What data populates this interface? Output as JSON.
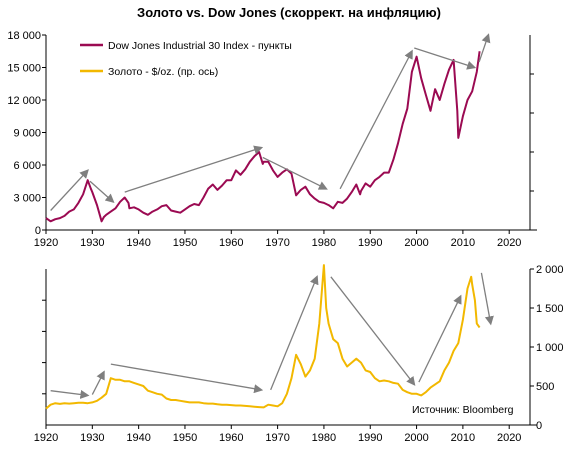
{
  "chart_data": {
    "type": "line",
    "title": "Золото vs. Dow Jones (скоррект. на инфляцию)",
    "source": "Источник: Bloomberg",
    "colors": {
      "dow": "#9b0a52",
      "gold": "#f2b800",
      "arrow": "#7f7f7f"
    },
    "x_ticks": [
      "1920",
      "1930",
      "1940",
      "1950",
      "1960",
      "1970",
      "1980",
      "1990",
      "2000",
      "2010",
      "2020"
    ],
    "panels": [
      {
        "name": "dow-panel",
        "ylim": [
          0,
          18000
        ],
        "y_ticks": [
          "0",
          "3 000",
          "6 000",
          "9 000",
          "12 000",
          "15 000",
          "18 000"
        ],
        "y_tick_values": [
          0,
          3000,
          6000,
          9000,
          12000,
          15000,
          18000
        ],
        "axis_side": "left",
        "series": [
          {
            "name": "Dow Jones Industrial 30 Index - пункты",
            "color": "#9b0a52",
            "points": [
              [
                1920,
                1100
              ],
              [
                1921,
                800
              ],
              [
                1922,
                1000
              ],
              [
                1923,
                1100
              ],
              [
                1924,
                1300
              ],
              [
                1925,
                1700
              ],
              [
                1926,
                1900
              ],
              [
                1927,
                2500
              ],
              [
                1928,
                3300
              ],
              [
                1929,
                4600
              ],
              [
                1929.7,
                3800
              ],
              [
                1930,
                3500
              ],
              [
                1931,
                2300
              ],
              [
                1932,
                800
              ],
              [
                1932.5,
                1200
              ],
              [
                1933,
                1400
              ],
              [
                1934,
                1700
              ],
              [
                1935,
                2000
              ],
              [
                1936,
                2600
              ],
              [
                1937,
                3000
              ],
              [
                1937.8,
                2500
              ],
              [
                1938,
                2000
              ],
              [
                1939,
                2100
              ],
              [
                1940,
                1900
              ],
              [
                1941,
                1600
              ],
              [
                1942,
                1400
              ],
              [
                1943,
                1700
              ],
              [
                1944,
                1900
              ],
              [
                1945,
                2200
              ],
              [
                1946,
                2300
              ],
              [
                1947,
                1800
              ],
              [
                1948,
                1700
              ],
              [
                1949,
                1600
              ],
              [
                1950,
                1900
              ],
              [
                1951,
                2200
              ],
              [
                1952,
                2400
              ],
              [
                1953,
                2300
              ],
              [
                1954,
                3000
              ],
              [
                1955,
                3800
              ],
              [
                1956,
                4200
              ],
              [
                1957,
                3700
              ],
              [
                1958,
                4100
              ],
              [
                1959,
                4600
              ],
              [
                1960,
                4600
              ],
              [
                1961,
                5500
              ],
              [
                1962,
                5100
              ],
              [
                1963,
                5600
              ],
              [
                1964,
                6300
              ],
              [
                1965,
                6800
              ],
              [
                1966,
                7200
              ],
              [
                1966.8,
                6100
              ],
              [
                1967,
                6300
              ],
              [
                1968,
                6300
              ],
              [
                1969,
                5500
              ],
              [
                1970,
                4900
              ],
              [
                1971,
                5300
              ],
              [
                1972,
                5600
              ],
              [
                1973,
                5200
              ],
              [
                1974,
                3200
              ],
              [
                1975,
                3700
              ],
              [
                1976,
                4000
              ],
              [
                1977,
                3300
              ],
              [
                1978,
                2900
              ],
              [
                1979,
                2600
              ],
              [
                1980,
                2500
              ],
              [
                1981,
                2300
              ],
              [
                1982,
                2000
              ],
              [
                1983,
                2600
              ],
              [
                1984,
                2500
              ],
              [
                1985,
                2900
              ],
              [
                1986,
                3500
              ],
              [
                1987,
                4200
              ],
              [
                1987.8,
                3300
              ],
              [
                1988,
                3600
              ],
              [
                1989,
                4300
              ],
              [
                1990,
                4000
              ],
              [
                1991,
                4600
              ],
              [
                1992,
                4900
              ],
              [
                1993,
                5300
              ],
              [
                1994,
                5300
              ],
              [
                1995,
                6500
              ],
              [
                1996,
                8000
              ],
              [
                1997,
                9800
              ],
              [
                1998,
                11200
              ],
              [
                1999,
                14600
              ],
              [
                2000,
                16000
              ],
              [
                2001,
                14000
              ],
              [
                2002,
                12500
              ],
              [
                2003,
                11000
              ],
              [
                2004,
                13000
              ],
              [
                2005,
                12000
              ],
              [
                2006,
                13500
              ],
              [
                2007,
                14800
              ],
              [
                2008,
                15700
              ],
              [
                2008.8,
                11000
              ],
              [
                2009,
                8500
              ],
              [
                2010,
                10500
              ],
              [
                2011,
                12000
              ],
              [
                2012,
                12800
              ],
              [
                2013,
                14600
              ],
              [
                2013.6,
                16500
              ]
            ]
          }
        ]
      },
      {
        "name": "gold-panel",
        "ylim": [
          0,
          2000
        ],
        "y_ticks": [
          "0",
          "500",
          "1 000",
          "1 500",
          "2 000"
        ],
        "y_tick_values": [
          0,
          500,
          1000,
          1500,
          2000
        ],
        "axis_side": "right",
        "series": [
          {
            "name": "Золото - $/oz. (пр. ось)",
            "color": "#f2b800",
            "points": [
              [
                1920,
                210
              ],
              [
                1921,
                260
              ],
              [
                1922,
                280
              ],
              [
                1923,
                270
              ],
              [
                1924,
                280
              ],
              [
                1925,
                275
              ],
              [
                1926,
                280
              ],
              [
                1927,
                285
              ],
              [
                1928,
                285
              ],
              [
                1929,
                280
              ],
              [
                1930,
                290
              ],
              [
                1931,
                310
              ],
              [
                1932,
                350
              ],
              [
                1933,
                400
              ],
              [
                1934,
                600
              ],
              [
                1935,
                580
              ],
              [
                1936,
                580
              ],
              [
                1937,
                560
              ],
              [
                1938,
                560
              ],
              [
                1939,
                540
              ],
              [
                1940,
                520
              ],
              [
                1941,
                500
              ],
              [
                1942,
                440
              ],
              [
                1943,
                420
              ],
              [
                1944,
                400
              ],
              [
                1945,
                390
              ],
              [
                1946,
                340
              ],
              [
                1947,
                320
              ],
              [
                1948,
                320
              ],
              [
                1949,
                310
              ],
              [
                1950,
                300
              ],
              [
                1951,
                290
              ],
              [
                1952,
                290
              ],
              [
                1953,
                290
              ],
              [
                1954,
                280
              ],
              [
                1955,
                275
              ],
              [
                1956,
                275
              ],
              [
                1957,
                265
              ],
              [
                1958,
                260
              ],
              [
                1959,
                260
              ],
              [
                1960,
                255
              ],
              [
                1961,
                250
              ],
              [
                1962,
                250
              ],
              [
                1963,
                245
              ],
              [
                1964,
                240
              ],
              [
                1965,
                235
              ],
              [
                1966,
                230
              ],
              [
                1967,
                225
              ],
              [
                1968,
                260
              ],
              [
                1969,
                250
              ],
              [
                1970,
                240
              ],
              [
                1971,
                280
              ],
              [
                1972,
                400
              ],
              [
                1973,
                600
              ],
              [
                1974,
                900
              ],
              [
                1975,
                780
              ],
              [
                1976,
                620
              ],
              [
                1977,
                700
              ],
              [
                1978,
                850
              ],
              [
                1979,
                1300
              ],
              [
                1980,
                2050
              ],
              [
                1980.5,
                1500
              ],
              [
                1981,
                1300
              ],
              [
                1982,
                1100
              ],
              [
                1983,
                1050
              ],
              [
                1984,
                850
              ],
              [
                1985,
                750
              ],
              [
                1986,
                800
              ],
              [
                1987,
                850
              ],
              [
                1988,
                800
              ],
              [
                1989,
                700
              ],
              [
                1990,
                680
              ],
              [
                1991,
                600
              ],
              [
                1992,
                560
              ],
              [
                1993,
                570
              ],
              [
                1994,
                560
              ],
              [
                1995,
                540
              ],
              [
                1996,
                530
              ],
              [
                1997,
                450
              ],
              [
                1998,
                420
              ],
              [
                1999,
                400
              ],
              [
                2000,
                400
              ],
              [
                2001,
                380
              ],
              [
                2002,
                420
              ],
              [
                2003,
                480
              ],
              [
                2004,
                520
              ],
              [
                2005,
                560
              ],
              [
                2006,
                700
              ],
              [
                2007,
                800
              ],
              [
                2008,
                950
              ],
              [
                2009,
                1050
              ],
              [
                2010,
                1350
              ],
              [
                2011,
                1750
              ],
              [
                2011.8,
                1900
              ],
              [
                2012,
                1800
              ],
              [
                2012.6,
                1600
              ],
              [
                2013,
                1300
              ],
              [
                2013.6,
                1250
              ]
            ]
          }
        ]
      }
    ],
    "arrows": [
      {
        "panel": 0,
        "from": [
          1921,
          1800
        ],
        "to": [
          1929,
          5500
        ]
      },
      {
        "panel": 0,
        "from": [
          1929.5,
          4500
        ],
        "to": [
          1934.5,
          2600
        ]
      },
      {
        "panel": 0,
        "from": [
          1937,
          3500
        ],
        "to": [
          1966.5,
          7600
        ]
      },
      {
        "panel": 0,
        "from": [
          1966.8,
          6700
        ],
        "to": [
          1980.5,
          3800
        ]
      },
      {
        "panel": 0,
        "from": [
          1983.5,
          3800
        ],
        "to": [
          1999,
          16500
        ]
      },
      {
        "panel": 0,
        "from": [
          1999.5,
          16800
        ],
        "to": [
          2012.5,
          15000
        ]
      },
      {
        "panel": 0,
        "from": [
          2013.5,
          15500
        ],
        "to": [
          2015.5,
          18000
        ]
      },
      {
        "panel": 1,
        "from": [
          1921,
          440
        ],
        "to": [
          1929,
          380
        ]
      },
      {
        "panel": 1,
        "from": [
          1930,
          390
        ],
        "to": [
          1932.5,
          680
        ]
      },
      {
        "panel": 1,
        "from": [
          1934,
          780
        ],
        "to": [
          1966.5,
          450
        ]
      },
      {
        "panel": 1,
        "from": [
          1968.5,
          450
        ],
        "to": [
          1978.5,
          1900
        ]
      },
      {
        "panel": 1,
        "from": [
          1981.5,
          1900
        ],
        "to": [
          1999.5,
          520
        ]
      },
      {
        "panel": 1,
        "from": [
          2000.5,
          550
        ],
        "to": [
          2009.5,
          1650
        ]
      },
      {
        "panel": 1,
        "from": [
          2014,
          1950
        ],
        "to": [
          2016,
          1300
        ]
      }
    ]
  }
}
